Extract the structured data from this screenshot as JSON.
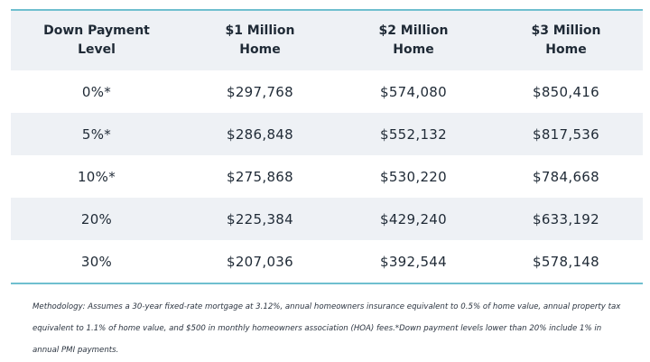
{
  "table": {
    "header": [
      "Down Payment Level",
      "$1 Million Home",
      "$2 Million Home",
      "$3 Million Home"
    ],
    "rows": [
      [
        "0%*",
        "$297,768",
        "$574,080",
        "$850,416"
      ],
      [
        "5%*",
        "$286,848",
        "$552,132",
        "$817,536"
      ],
      [
        "10%*",
        "$275,868",
        "$530,220",
        "$784,668"
      ],
      [
        "20%",
        "$225,384",
        "$429,240",
        "$633,192"
      ],
      [
        "30%",
        "$207,036",
        "$392,544",
        "$578,148"
      ]
    ]
  },
  "note": "Methodology: Assumes a 30-year fixed-rate mortgage at 3.12%, annual homeowners insurance equivalent to 0.5% of home value, annual property tax equivalent to 1.1% of home value, and $500 in monthly homeowners association (HOA) fees.*Down payment levels lower than 20% include 1% in annual PMI payments."
}
